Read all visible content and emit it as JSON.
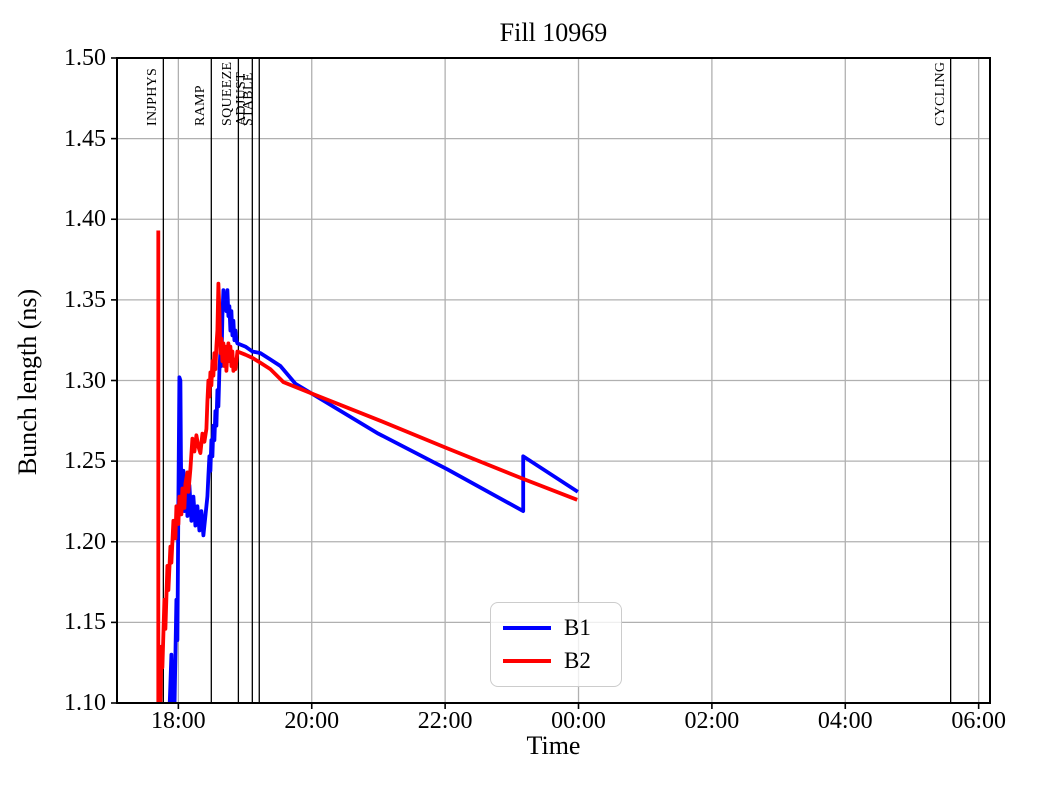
{
  "chart_data": {
    "type": "line",
    "title": "Fill 10969",
    "xlabel": "Time",
    "ylabel": "Bunch length (ns)",
    "xlim_hours": [
      17.08,
      30.17
    ],
    "ylim": [
      1.1,
      1.5
    ],
    "grid": true,
    "grid_color": "#b0b0b0",
    "axis_color": "#000000",
    "x_ticks": [
      {
        "hour": 18,
        "label": "18:00"
      },
      {
        "hour": 20,
        "label": "20:00"
      },
      {
        "hour": 22,
        "label": "22:00"
      },
      {
        "hour": 24,
        "label": "00:00"
      },
      {
        "hour": 26,
        "label": "02:00"
      },
      {
        "hour": 28,
        "label": "04:00"
      },
      {
        "hour": 30,
        "label": "06:00"
      }
    ],
    "y_ticks": [
      {
        "value": 1.1,
        "label": "1.10"
      },
      {
        "value": 1.15,
        "label": "1.15"
      },
      {
        "value": 1.2,
        "label": "1.20"
      },
      {
        "value": 1.25,
        "label": "1.25"
      },
      {
        "value": 1.3,
        "label": "1.30"
      },
      {
        "value": 1.35,
        "label": "1.35"
      },
      {
        "value": 1.4,
        "label": "1.40"
      },
      {
        "value": 1.45,
        "label": "1.45"
      },
      {
        "value": 1.5,
        "label": "1.50"
      }
    ],
    "beam_modes": [
      {
        "label": "INJPHYS",
        "hour": 17.775
      },
      {
        "label": "RAMP",
        "hour": 18.494
      },
      {
        "label": "SQUEEZE",
        "hour": 18.9
      },
      {
        "label": "ADJUST",
        "hour": 19.109
      },
      {
        "label": "STABLE",
        "hour": 19.213
      },
      {
        "label": "CYCLING",
        "hour": 29.58
      }
    ],
    "legend_position": "lower-center",
    "series": [
      {
        "name": "B1",
        "color": "#0000ff",
        "points": [
          [
            17.865,
            1.094
          ],
          [
            17.895,
            1.13
          ],
          [
            17.91,
            1.102
          ],
          [
            17.94,
            1.094
          ],
          [
            17.97,
            1.164
          ],
          [
            17.985,
            1.139
          ],
          [
            18.0,
            1.226
          ],
          [
            18.015,
            1.302
          ],
          [
            18.03,
            1.3
          ],
          [
            18.038,
            1.254
          ],
          [
            18.045,
            1.227
          ],
          [
            18.075,
            1.244
          ],
          [
            18.09,
            1.219
          ],
          [
            18.12,
            1.238
          ],
          [
            18.135,
            1.216
          ],
          [
            18.165,
            1.235
          ],
          [
            18.195,
            1.213
          ],
          [
            18.225,
            1.228
          ],
          [
            18.255,
            1.21
          ],
          [
            18.285,
            1.222
          ],
          [
            18.315,
            1.207
          ],
          [
            18.345,
            1.219
          ],
          [
            18.375,
            1.204
          ],
          [
            18.405,
            1.216
          ],
          [
            18.435,
            1.228
          ],
          [
            18.45,
            1.241
          ],
          [
            18.465,
            1.253
          ],
          [
            18.48,
            1.244
          ],
          [
            18.495,
            1.263
          ],
          [
            18.51,
            1.253
          ],
          [
            18.525,
            1.272
          ],
          [
            18.54,
            1.263
          ],
          [
            18.555,
            1.281
          ],
          [
            18.57,
            1.272
          ],
          [
            18.585,
            1.294
          ],
          [
            18.6,
            1.284
          ],
          [
            18.615,
            1.306
          ],
          [
            18.63,
            1.318
          ],
          [
            18.645,
            1.309
          ],
          [
            18.66,
            1.34
          ],
          [
            18.675,
            1.356
          ],
          [
            18.69,
            1.346
          ],
          [
            18.705,
            1.354
          ],
          [
            18.72,
            1.343
          ],
          [
            18.735,
            1.356
          ],
          [
            18.75,
            1.34
          ],
          [
            18.765,
            1.346
          ],
          [
            18.78,
            1.331
          ],
          [
            18.795,
            1.343
          ],
          [
            18.81,
            1.328
          ],
          [
            18.825,
            1.337
          ],
          [
            18.84,
            1.325
          ],
          [
            18.855,
            1.331
          ],
          [
            18.87,
            1.325
          ],
          [
            18.885,
            1.323
          ],
          [
            19.005,
            1.321
          ],
          [
            19.11,
            1.318
          ],
          [
            19.23,
            1.317
          ],
          [
            19.38,
            1.313
          ],
          [
            19.53,
            1.309
          ],
          [
            19.755,
            1.298
          ],
          [
            19.995,
            1.292
          ],
          [
            21.0,
            1.267
          ],
          [
            22.03,
            1.245
          ],
          [
            23.17,
            1.219
          ],
          [
            23.17,
            1.253
          ],
          [
            23.99,
            1.231
          ]
        ]
      },
      {
        "name": "B2",
        "color": "#ff0000",
        "points": [
          [
            17.7,
            1.393
          ],
          [
            17.7,
            1.094
          ],
          [
            17.73,
            1.094
          ],
          [
            17.745,
            1.135
          ],
          [
            17.76,
            1.122
          ],
          [
            17.79,
            1.164
          ],
          [
            17.805,
            1.146
          ],
          [
            17.835,
            1.185
          ],
          [
            17.85,
            1.17
          ],
          [
            17.88,
            1.197
          ],
          [
            17.895,
            1.187
          ],
          [
            17.925,
            1.213
          ],
          [
            17.955,
            1.202
          ],
          [
            17.97,
            1.222
          ],
          [
            18.0,
            1.211
          ],
          [
            18.015,
            1.228
          ],
          [
            18.045,
            1.217
          ],
          [
            18.06,
            1.233
          ],
          [
            18.09,
            1.221
          ],
          [
            18.105,
            1.236
          ],
          [
            18.135,
            1.243
          ],
          [
            18.15,
            1.231
          ],
          [
            18.18,
            1.245
          ],
          [
            18.21,
            1.264
          ],
          [
            18.24,
            1.256
          ],
          [
            18.27,
            1.266
          ],
          [
            18.3,
            1.259
          ],
          [
            18.33,
            1.255
          ],
          [
            18.36,
            1.267
          ],
          [
            18.39,
            1.262
          ],
          [
            18.42,
            1.27
          ],
          [
            18.435,
            1.287
          ],
          [
            18.45,
            1.3
          ],
          [
            18.465,
            1.29
          ],
          [
            18.48,
            1.305
          ],
          [
            18.495,
            1.297
          ],
          [
            18.51,
            1.312
          ],
          [
            18.525,
            1.303
          ],
          [
            18.54,
            1.317
          ],
          [
            18.555,
            1.307
          ],
          [
            18.57,
            1.321
          ],
          [
            18.585,
            1.331
          ],
          [
            18.6,
            1.36
          ],
          [
            18.615,
            1.343
          ],
          [
            18.63,
            1.317
          ],
          [
            18.645,
            1.326
          ],
          [
            18.66,
            1.312
          ],
          [
            18.675,
            1.323
          ],
          [
            18.69,
            1.309
          ],
          [
            18.705,
            1.321
          ],
          [
            18.72,
            1.306
          ],
          [
            18.735,
            1.317
          ],
          [
            18.75,
            1.323
          ],
          [
            18.765,
            1.312
          ],
          [
            18.78,
            1.321
          ],
          [
            18.795,
            1.309
          ],
          [
            18.81,
            1.318
          ],
          [
            18.825,
            1.306
          ],
          [
            18.84,
            1.313
          ],
          [
            18.855,
            1.307
          ],
          [
            18.87,
            1.312
          ],
          [
            18.885,
            1.318
          ],
          [
            19.005,
            1.316
          ],
          [
            19.11,
            1.314
          ],
          [
            19.23,
            1.311
          ],
          [
            19.38,
            1.307
          ],
          [
            19.575,
            1.299
          ],
          [
            19.995,
            1.292
          ],
          [
            21.03,
            1.275
          ],
          [
            22.03,
            1.258
          ],
          [
            23.17,
            1.239
          ],
          [
            23.98,
            1.226
          ]
        ]
      }
    ]
  }
}
